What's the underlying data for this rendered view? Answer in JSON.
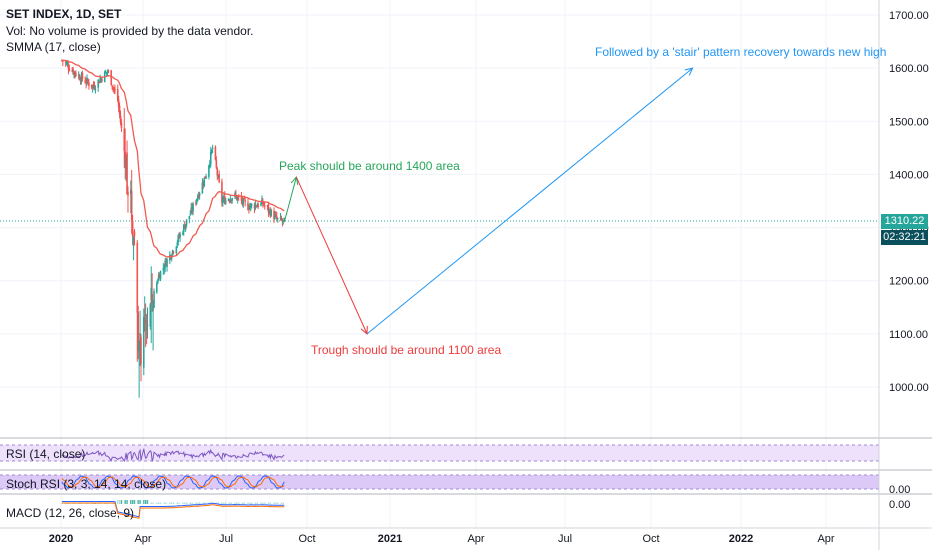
{
  "legend": {
    "title": "SET INDEX, 1D, SET",
    "volume": "Vol: No volume is provided by the data vendor.",
    "ma": "SMMA (17, close)"
  },
  "annotations": {
    "peak": "Peak should be around 1400 area",
    "trough": "Trough should be around 1100 area",
    "recovery": "Followed by a 'stair' pattern recovery towards new high"
  },
  "colors": {
    "up": "#26a69a",
    "down": "#ef5350",
    "smma": "#f15a4f",
    "peak_text": "#26a65b",
    "trough_text": "#ef3b3b",
    "recovery_text": "#2196f3",
    "price_line": "#26a69a",
    "time_tag": "#0b4f5c",
    "rsi": "#7e57c2",
    "rsi_band": "#ede1fb",
    "stoch_k": "#2962ff",
    "stoch_d": "#ff6d00",
    "stoch_band": "#ddc9f8",
    "macd": "#2962ff",
    "signal": "#ff6d00"
  },
  "price_tag": {
    "last": "1310.22",
    "countdown": "02:32:21"
  },
  "indicators": {
    "rsi": "RSI (14, close)",
    "stoch": "Stoch RSI (3, 3, 14, 14, close)",
    "stoch_axis": "0.00",
    "macd": "MACD (12, 26, close, 9)",
    "macd_axis": "0.00"
  },
  "chart_data": {
    "type": "candlestick",
    "y_ticks": [
      1000,
      1100,
      1200,
      1300,
      1400,
      1500,
      1600,
      1700
    ],
    "ylim": [
      920,
      1730
    ],
    "x_ticks": [
      "2020",
      "Apr",
      "Jul",
      "Oct",
      "2021",
      "Apr",
      "Jul",
      "Oct",
      "2022",
      "Apr"
    ],
    "last_price": 1310.22,
    "price_path": [
      {
        "date": "2020-01-02",
        "price": 1615
      },
      {
        "date": "2020-01-20",
        "price": 1585
      },
      {
        "date": "2020-02-05",
        "price": 1565
      },
      {
        "date": "2020-02-20",
        "price": 1595
      },
      {
        "date": "2020-03-02",
        "price": 1540
      },
      {
        "date": "2020-03-10",
        "price": 1430
      },
      {
        "date": "2020-03-20",
        "price": 1280
      },
      {
        "date": "2020-03-25",
        "price": 1060
      },
      {
        "date": "2020-04-05",
        "price": 1140
      },
      {
        "date": "2020-04-15",
        "price": 1210
      },
      {
        "date": "2020-05-01",
        "price": 1260
      },
      {
        "date": "2020-05-20",
        "price": 1330
      },
      {
        "date": "2020-06-05",
        "price": 1400
      },
      {
        "date": "2020-06-12",
        "price": 1450
      },
      {
        "date": "2020-06-22",
        "price": 1350
      },
      {
        "date": "2020-07-05",
        "price": 1360
      },
      {
        "date": "2020-07-20",
        "price": 1340
      },
      {
        "date": "2020-08-05",
        "price": 1345
      },
      {
        "date": "2020-08-20",
        "price": 1315
      },
      {
        "date": "2020-08-28",
        "price": 1310
      }
    ],
    "forecast_path": [
      {
        "date": "2020-08-28",
        "price": 1310
      },
      {
        "date": "2020-09-10",
        "price": 1395
      },
      {
        "date": "2020-11-25",
        "price": 1100
      },
      {
        "date": "2021-11-10",
        "price": 1600
      }
    ]
  }
}
